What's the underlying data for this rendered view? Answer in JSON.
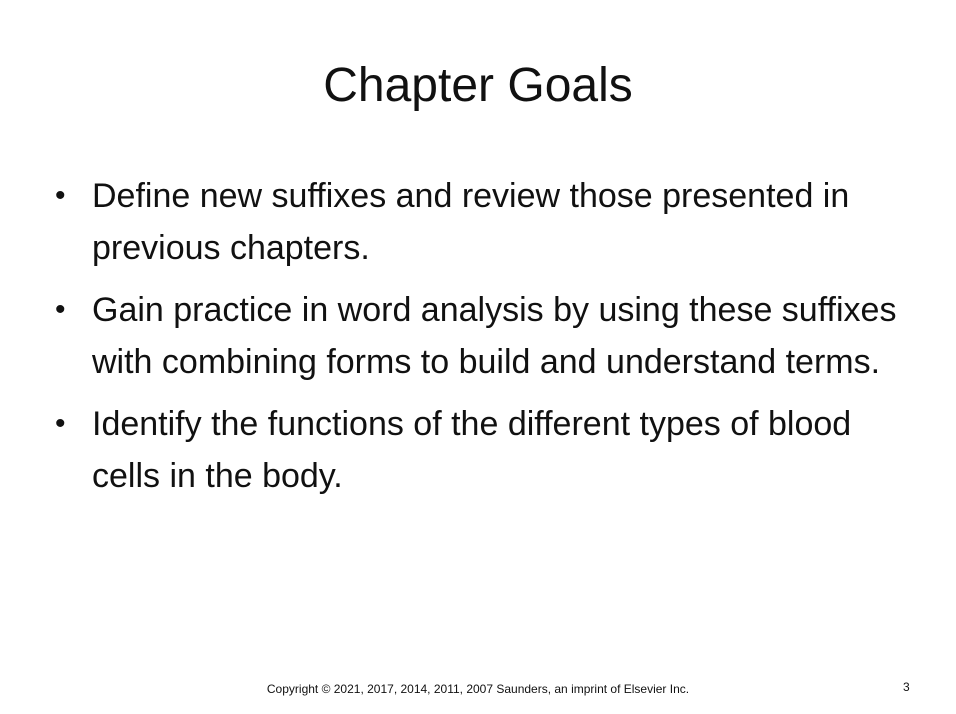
{
  "slide": {
    "title": "Chapter Goals",
    "bullet_glyph": "•",
    "bullets": [
      "Define new suffixes and review those presented in previous chapters.",
      "Gain practice in word analysis by using these suffixes with combining forms to build and understand terms.",
      "Identify the functions of the different types of blood cells in the body."
    ],
    "footer": "Copyright © 2021, 2017, 2014, 2011, 2007 Saunders, an imprint of Elsevier Inc.",
    "page_number": "3"
  }
}
